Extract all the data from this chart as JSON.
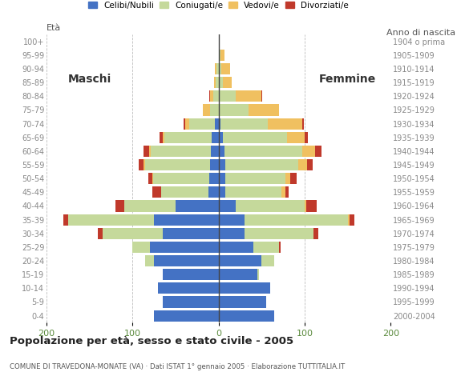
{
  "age_groups": [
    "0-4",
    "5-9",
    "10-14",
    "15-19",
    "20-24",
    "25-29",
    "30-34",
    "35-39",
    "40-44",
    "45-49",
    "50-54",
    "55-59",
    "60-64",
    "65-69",
    "70-74",
    "75-79",
    "80-84",
    "85-89",
    "90-94",
    "95-99",
    "100+"
  ],
  "birth_years": [
    "2000-2004",
    "1995-1999",
    "1990-1994",
    "1985-1989",
    "1980-1984",
    "1975-1979",
    "1970-1974",
    "1965-1969",
    "1960-1964",
    "1955-1959",
    "1950-1954",
    "1945-1949",
    "1940-1944",
    "1935-1939",
    "1930-1934",
    "1925-1929",
    "1920-1924",
    "1915-1919",
    "1910-1914",
    "1905-1909",
    "1904 o prima"
  ],
  "male": {
    "celibe": [
      75,
      65,
      70,
      65,
      75,
      80,
      65,
      75,
      50,
      12,
      11,
      10,
      9,
      8,
      4,
      0,
      0,
      0,
      0,
      0,
      0
    ],
    "coniugato": [
      0,
      0,
      0,
      0,
      10,
      20,
      70,
      100,
      60,
      55,
      65,
      75,
      70,
      55,
      30,
      10,
      6,
      3,
      2,
      0,
      0
    ],
    "vedovo": [
      0,
      0,
      0,
      0,
      0,
      0,
      0,
      0,
      0,
      0,
      1,
      2,
      2,
      2,
      5,
      8,
      4,
      2,
      2,
      0,
      0
    ],
    "divorziato": [
      0,
      0,
      0,
      0,
      0,
      0,
      5,
      5,
      10,
      10,
      5,
      6,
      6,
      4,
      2,
      0,
      1,
      0,
      0,
      0,
      0
    ]
  },
  "female": {
    "nubile": [
      65,
      55,
      60,
      45,
      50,
      40,
      30,
      30,
      20,
      8,
      8,
      8,
      7,
      5,
      2,
      0,
      0,
      0,
      0,
      0,
      0
    ],
    "coniugata": [
      0,
      0,
      0,
      2,
      15,
      30,
      80,
      120,
      80,
      65,
      70,
      85,
      90,
      75,
      55,
      35,
      20,
      5,
      3,
      2,
      0
    ],
    "vedova": [
      0,
      0,
      0,
      0,
      0,
      0,
      0,
      2,
      2,
      5,
      5,
      10,
      15,
      20,
      40,
      35,
      30,
      10,
      10,
      5,
      0
    ],
    "divorziata": [
      0,
      0,
      0,
      0,
      0,
      2,
      6,
      6,
      12,
      3,
      8,
      6,
      8,
      4,
      2,
      0,
      1,
      0,
      0,
      0,
      0
    ]
  },
  "color_celibe": "#4472c4",
  "color_coniugato": "#c5d99b",
  "color_vedovo": "#f0c060",
  "color_divorziato": "#c0392b",
  "bg_color": "#ffffff",
  "grid_color": "#bbbbbb",
  "title": "Popolazione per età, sesso e stato civile - 2005",
  "subtitle": "COMUNE DI TRAVEDONA-MONATE (VA) · Dati ISTAT 1° gennaio 2005 · Elaborazione TUTTITALIA.IT",
  "xlim": 200,
  "xlabel_left": "Maschi",
  "xlabel_right": "Femmine",
  "ylabel_left": "Età",
  "ylabel_right": "Anno di nascita"
}
